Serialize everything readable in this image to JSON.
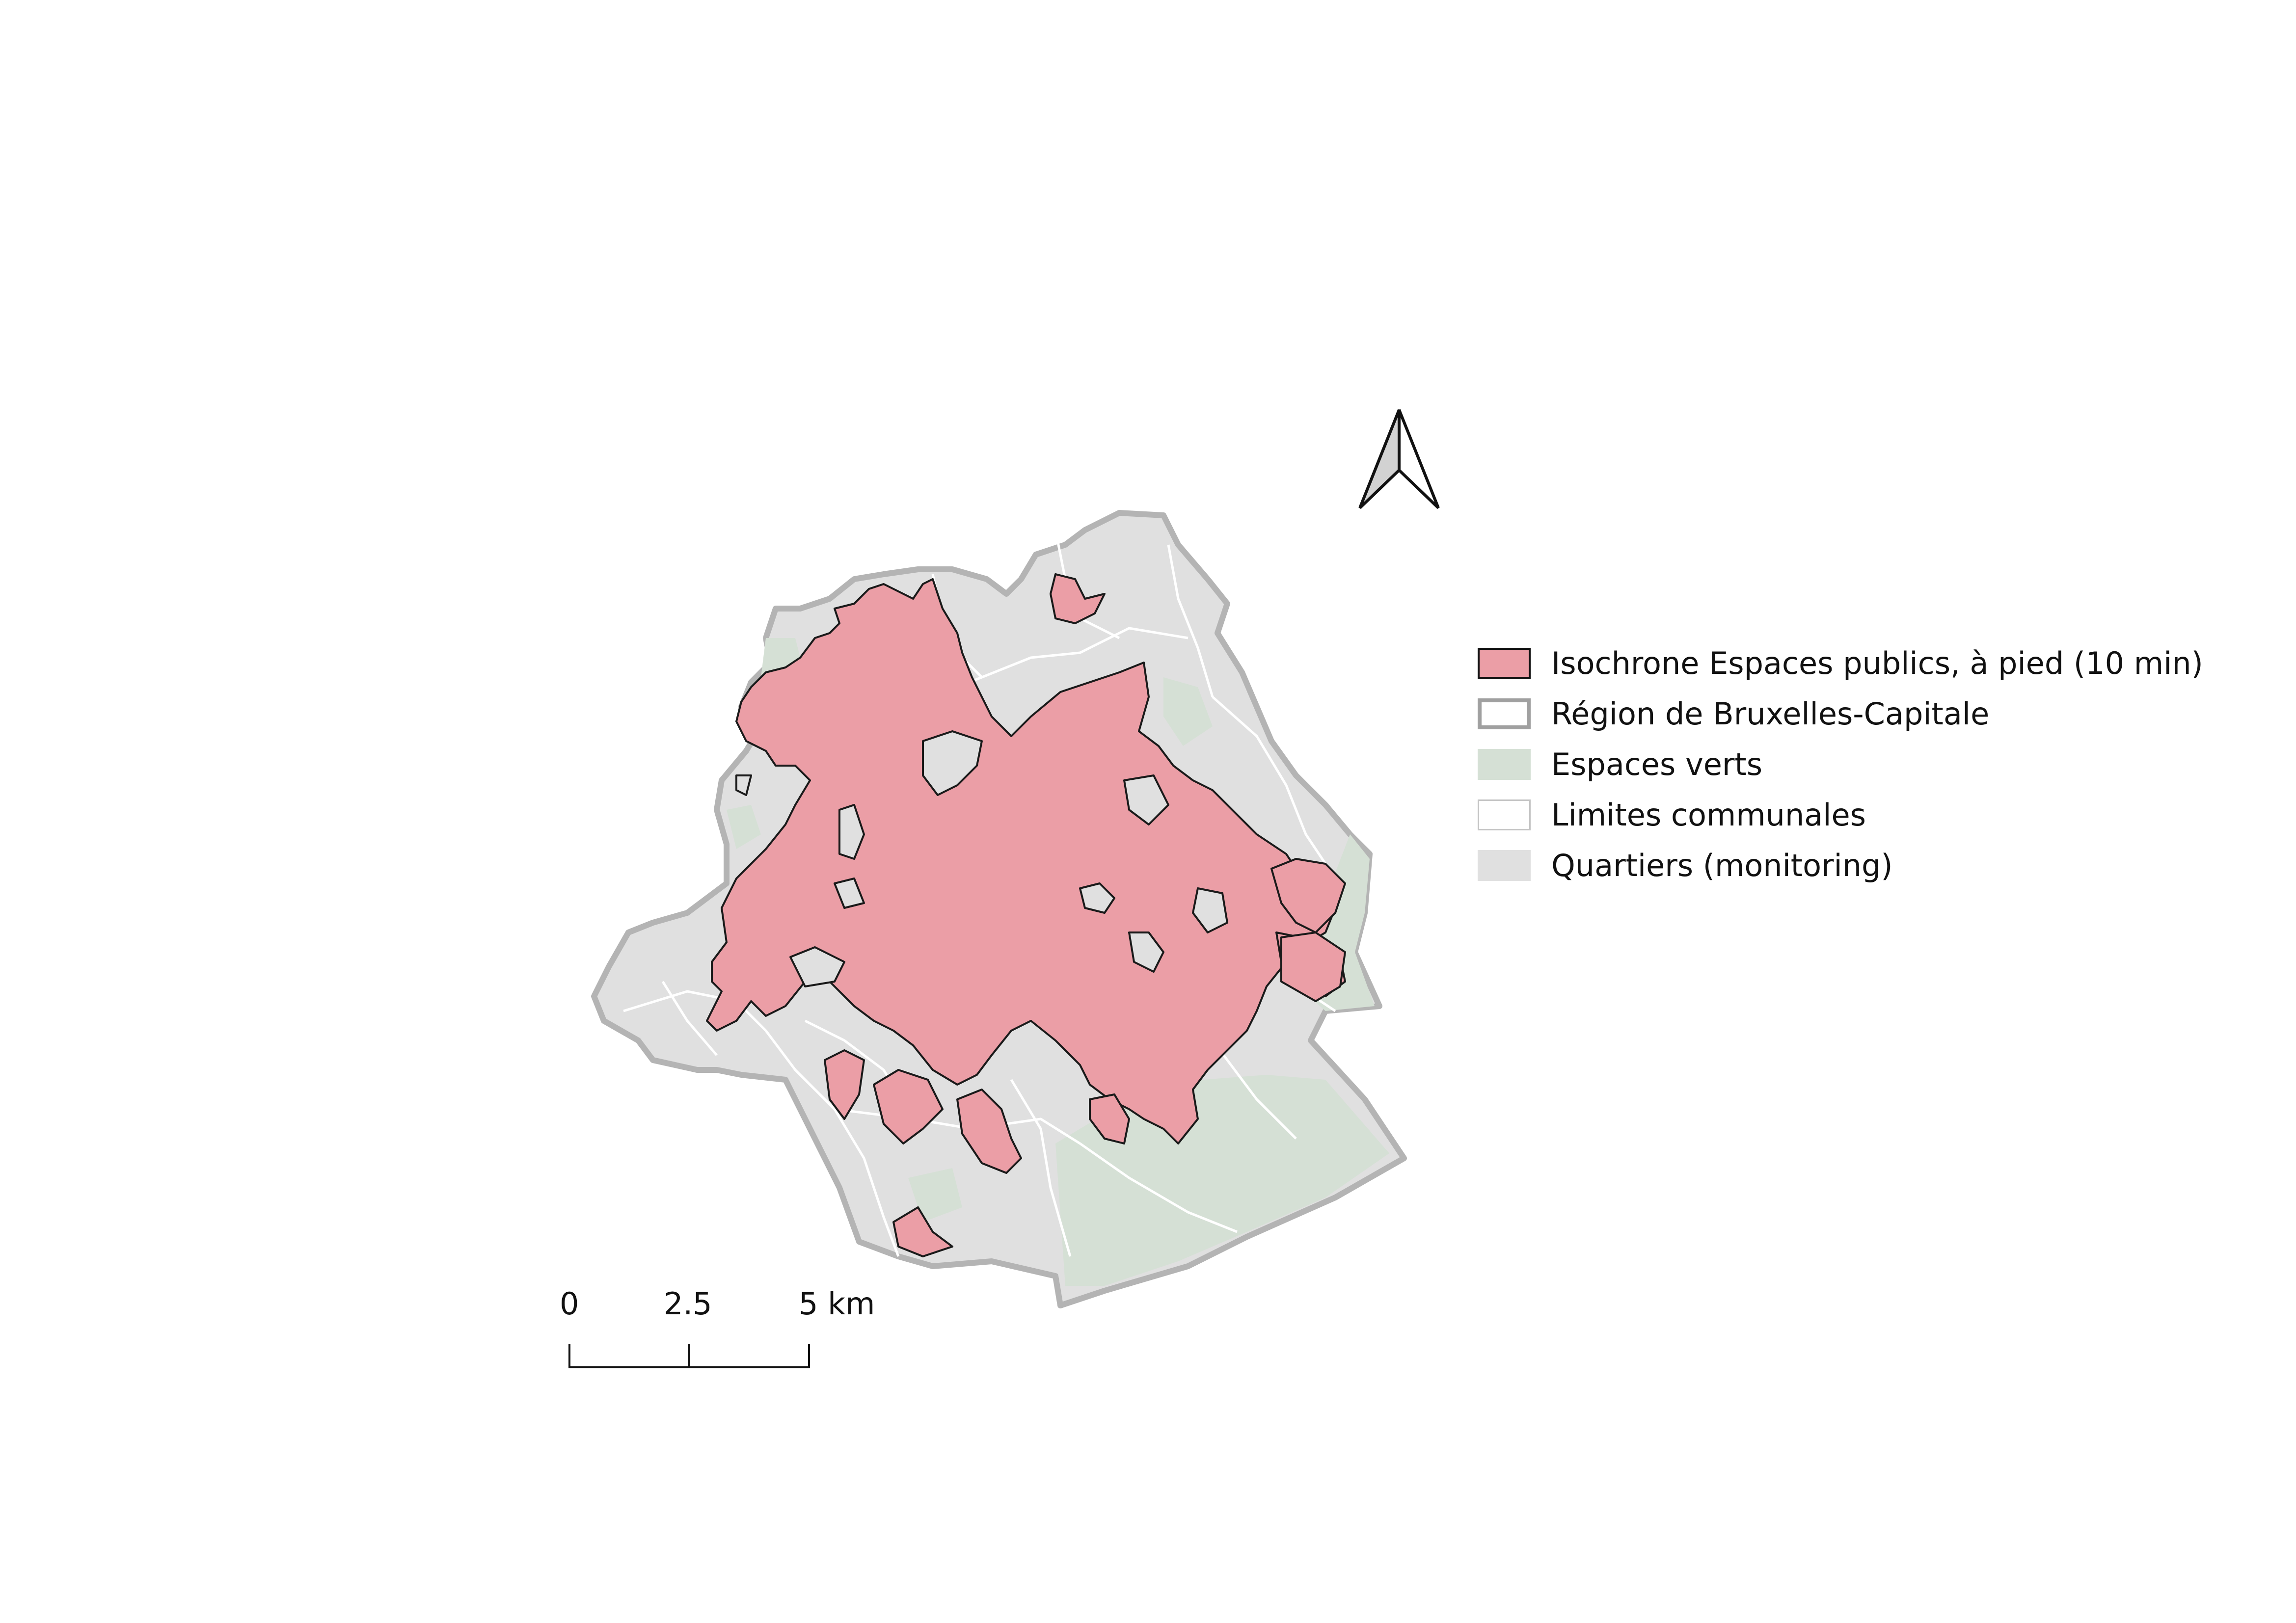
{
  "legend": {
    "items": [
      {
        "label": "Isochrone Espaces publics, à pied (10 min)",
        "fill": "#eb9ea6",
        "stroke": "#111111"
      },
      {
        "label": "Région de Bruxelles-Capitale",
        "fill": "#ffffff",
        "stroke": "#9a9a9a"
      },
      {
        "label": "Espaces verts",
        "fill": "#d5e0d5",
        "stroke": "#d5e0d5"
      },
      {
        "label": "Limites communales",
        "fill": "#ffffff",
        "stroke": "#bdbdbd"
      },
      {
        "label": "Quartiers (monitoring)",
        "fill": "#e0e0e0",
        "stroke": "#e0e0e0"
      }
    ]
  },
  "scalebar": {
    "labels": [
      "0",
      "2.5",
      "5 km"
    ]
  },
  "north_arrow": {
    "icon": "north-arrow-icon"
  },
  "colors": {
    "isochrone": "#eb9ea6",
    "quartiers": "#e0e0e0",
    "espaces_verts": "#d5e0d5",
    "region_outline": "#b0b0b0",
    "communal_lines": "#ffffff"
  }
}
